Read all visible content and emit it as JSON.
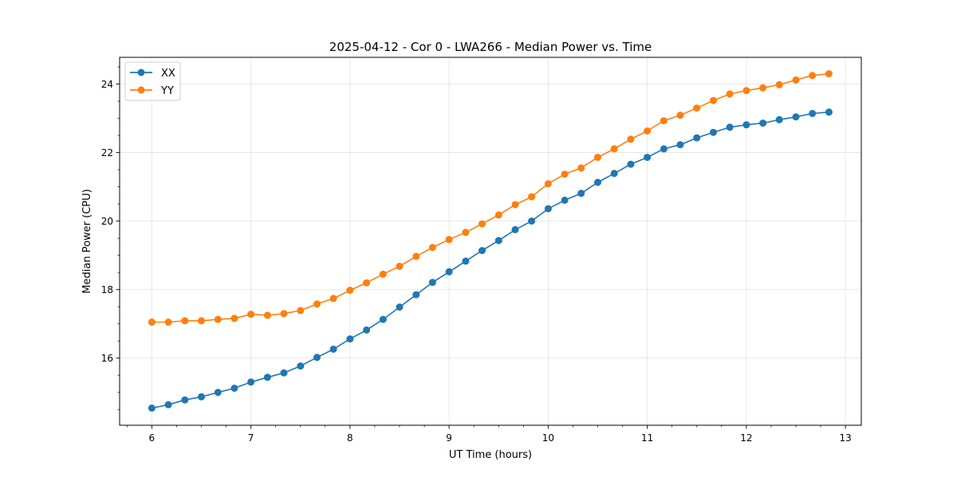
{
  "chart_data": {
    "type": "line",
    "title": "2025-04-12 - Cor 0 - LWA266 - Median Power vs. Time",
    "xlabel": "UT Time (hours)",
    "ylabel": "Median Power (CPU)",
    "xlim": [
      5.675,
      13.16
    ],
    "ylim": [
      14.04,
      24.78
    ],
    "xticks": [
      "6",
      "7",
      "8",
      "9",
      "10",
      "11",
      "12",
      "13"
    ],
    "yticks": [
      "16",
      "18",
      "20",
      "22",
      "24"
    ],
    "grid": true,
    "legend_position": "top-left",
    "x": [
      6.0,
      6.167,
      6.333,
      6.5,
      6.667,
      6.833,
      7.0,
      7.167,
      7.333,
      7.5,
      7.667,
      7.833,
      8.0,
      8.167,
      8.333,
      8.5,
      8.667,
      8.833,
      9.0,
      9.167,
      9.333,
      9.5,
      9.667,
      9.833,
      10.0,
      10.167,
      10.333,
      10.5,
      10.667,
      10.833,
      11.0,
      11.167,
      11.333,
      11.5,
      11.667,
      11.833,
      12.0,
      12.167,
      12.333,
      12.5,
      12.667,
      12.833
    ],
    "series": [
      {
        "name": "XX",
        "color": "#1f77b4",
        "values": [
          14.54,
          14.64,
          14.78,
          14.87,
          15.0,
          15.12,
          15.3,
          15.44,
          15.57,
          15.77,
          16.02,
          16.26,
          16.56,
          16.82,
          17.13,
          17.49,
          17.85,
          18.21,
          18.52,
          18.83,
          19.14,
          19.43,
          19.75,
          20.0,
          20.36,
          20.61,
          20.81,
          21.13,
          21.39,
          21.66,
          21.86,
          22.11,
          22.23,
          22.43,
          22.59,
          22.74,
          22.81,
          22.86,
          22.96,
          23.04,
          23.14,
          23.18
        ]
      },
      {
        "name": "YY",
        "color": "#ff7f0e",
        "values": [
          17.05,
          17.05,
          17.09,
          17.09,
          17.13,
          17.16,
          17.28,
          17.25,
          17.3,
          17.39,
          17.58,
          17.74,
          17.98,
          18.2,
          18.45,
          18.68,
          18.97,
          19.23,
          19.46,
          19.67,
          19.92,
          20.18,
          20.48,
          20.71,
          21.09,
          21.37,
          21.55,
          21.86,
          22.11,
          22.39,
          22.63,
          22.93,
          23.09,
          23.3,
          23.52,
          23.71,
          23.81,
          23.89,
          23.98,
          24.12,
          24.25,
          24.3
        ]
      }
    ]
  }
}
